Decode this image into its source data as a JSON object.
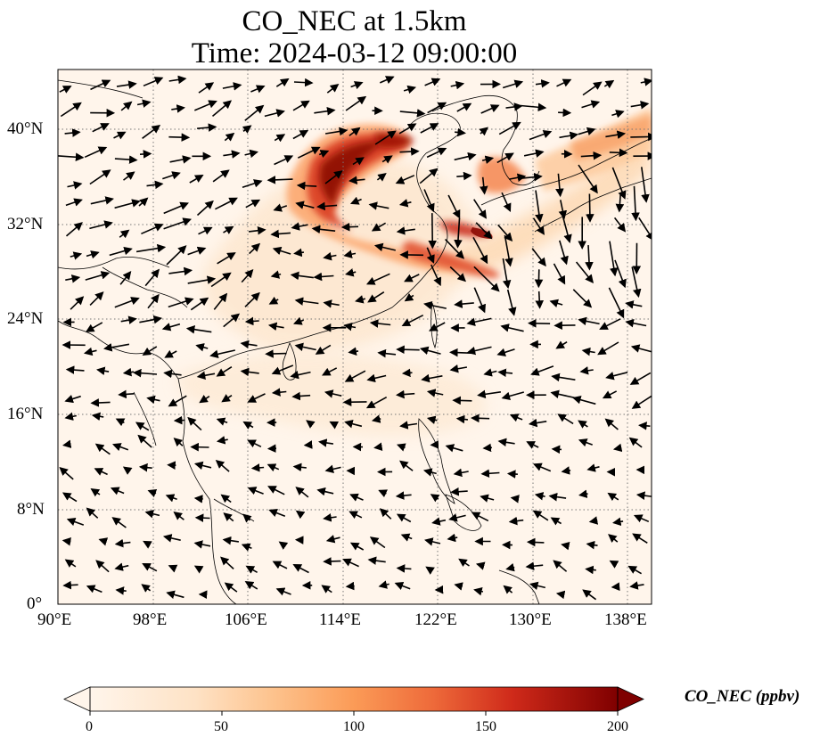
{
  "title": {
    "line1": "CO_NEC at 1.5km",
    "line2": "Time: 2024-03-12 09:00:00"
  },
  "map": {
    "lon_range": [
      90,
      140
    ],
    "lat_range": [
      0,
      45
    ],
    "lon_ticks": [
      "90°E",
      "98°E",
      "106°E",
      "114°E",
      "122°E",
      "130°E",
      "138°E"
    ],
    "lat_ticks": [
      "0°",
      "8°N",
      "16°N",
      "24°N",
      "32°N",
      "40°N"
    ],
    "gridlines": "dotted",
    "vector_field": "wind arrows"
  },
  "colorbar": {
    "title": "CO_NEC (ppbv)",
    "tick_labels": [
      "0",
      "50",
      "100",
      "150",
      "200"
    ],
    "range": [
      0,
      200
    ],
    "colormap": [
      "#fff5eb",
      "#fdd3a6",
      "#fda35c",
      "#f16913",
      "#d54a1d",
      "#a63603",
      "#7f0000"
    ],
    "extend": "both"
  }
}
